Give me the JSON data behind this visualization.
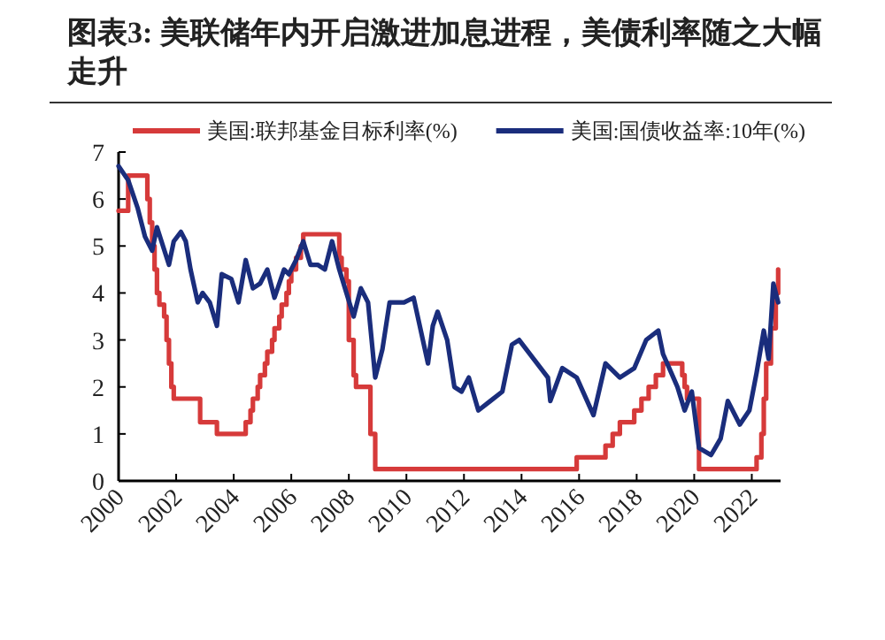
{
  "chart_data": {
    "type": "line",
    "title": "图表3: 美联储年内开启激进加息进程，美债利率随之大幅走升",
    "legend": "top",
    "xlim": [
      "2000-01",
      "2023-01"
    ],
    "xticks": [
      "2000",
      "2002",
      "2004",
      "2006",
      "2008",
      "2010",
      "2012",
      "2014",
      "2016",
      "2018",
      "2020",
      "2022"
    ],
    "ylim": [
      0,
      7
    ],
    "yticks": [
      0,
      1,
      2,
      3,
      4,
      5,
      6,
      7
    ],
    "series": [
      {
        "name": "美国:联邦基金目标利率(%)",
        "type": "step",
        "color": "#d63a3a",
        "x": [
          "2000-01",
          "2000-05",
          "2001-01",
          "2001-02",
          "2001-03",
          "2001-04",
          "2001-05",
          "2001-06",
          "2001-08",
          "2001-09",
          "2001-10",
          "2001-11",
          "2001-12",
          "2002-11",
          "2003-06",
          "2004-06",
          "2004-08",
          "2004-09",
          "2004-11",
          "2004-12",
          "2005-02",
          "2005-03",
          "2005-05",
          "2005-06",
          "2005-08",
          "2005-09",
          "2005-11",
          "2005-12",
          "2006-01",
          "2006-03",
          "2006-05",
          "2006-06",
          "2007-09",
          "2007-10",
          "2007-12",
          "2008-01",
          "2008-03",
          "2008-04",
          "2008-10",
          "2008-12",
          "2015-12",
          "2016-12",
          "2017-03",
          "2017-06",
          "2017-12",
          "2018-03",
          "2018-06",
          "2018-09",
          "2018-12",
          "2019-08",
          "2019-09",
          "2019-10",
          "2020-03",
          "2022-03",
          "2022-05",
          "2022-06",
          "2022-07",
          "2022-09",
          "2022-11",
          "2022-12"
        ],
        "values": [
          5.75,
          6.5,
          6.0,
          5.5,
          5.0,
          4.5,
          4.0,
          3.75,
          3.5,
          3.0,
          2.5,
          2.0,
          1.75,
          1.25,
          1.0,
          1.25,
          1.5,
          1.75,
          2.0,
          2.25,
          2.5,
          2.75,
          3.0,
          3.25,
          3.5,
          3.75,
          4.0,
          4.25,
          4.5,
          4.75,
          5.0,
          5.25,
          4.75,
          4.5,
          4.25,
          3.0,
          2.25,
          2.0,
          1.0,
          0.25,
          0.5,
          0.75,
          1.0,
          1.25,
          1.5,
          1.75,
          2.0,
          2.25,
          2.5,
          2.25,
          2.0,
          1.75,
          0.25,
          0.5,
          1.0,
          1.75,
          2.5,
          3.25,
          4.0,
          4.5
        ]
      },
      {
        "name": "美国:国债收益率:10年(%)",
        "type": "line",
        "color": "#1a2d7c",
        "x": [
          "2000-01",
          "2000-05",
          "2000-09",
          "2000-12",
          "2001-03",
          "2001-05",
          "2001-10",
          "2001-12",
          "2002-03",
          "2002-05",
          "2002-07",
          "2002-10",
          "2002-12",
          "2003-03",
          "2003-06",
          "2003-08",
          "2003-12",
          "2004-03",
          "2004-06",
          "2004-09",
          "2004-12",
          "2005-03",
          "2005-06",
          "2005-10",
          "2005-12",
          "2006-03",
          "2006-06",
          "2006-09",
          "2006-12",
          "2007-03",
          "2007-06",
          "2007-09",
          "2007-12",
          "2008-03",
          "2008-06",
          "2008-09",
          "2008-12",
          "2009-03",
          "2009-06",
          "2009-12",
          "2010-04",
          "2010-10",
          "2010-12",
          "2011-02",
          "2011-06",
          "2011-09",
          "2011-12",
          "2012-03",
          "2012-07",
          "2012-12",
          "2013-05",
          "2013-09",
          "2013-12",
          "2014-06",
          "2014-12",
          "2015-01",
          "2015-06",
          "2015-12",
          "2016-07",
          "2016-12",
          "2017-06",
          "2017-12",
          "2018-05",
          "2018-10",
          "2018-12",
          "2019-06",
          "2019-09",
          "2019-12",
          "2020-03",
          "2020-08",
          "2020-12",
          "2021-03",
          "2021-08",
          "2021-12",
          "2022-03",
          "2022-06",
          "2022-08",
          "2022-10",
          "2022-12"
        ],
        "values": [
          6.7,
          6.4,
          5.8,
          5.2,
          4.9,
          5.4,
          4.6,
          5.1,
          5.3,
          5.1,
          4.5,
          3.8,
          4.0,
          3.8,
          3.3,
          4.4,
          4.3,
          3.8,
          4.7,
          4.1,
          4.2,
          4.5,
          3.9,
          4.5,
          4.4,
          4.7,
          5.1,
          4.6,
          4.6,
          4.5,
          5.1,
          4.5,
          4.0,
          3.5,
          4.1,
          3.8,
          2.2,
          2.8,
          3.8,
          3.8,
          3.9,
          2.5,
          3.3,
          3.6,
          3.0,
          2.0,
          1.9,
          2.2,
          1.5,
          1.7,
          1.9,
          2.9,
          3.0,
          2.6,
          2.2,
          1.7,
          2.4,
          2.2,
          1.4,
          2.5,
          2.2,
          2.4,
          3.0,
          3.2,
          2.7,
          2.0,
          1.5,
          1.9,
          0.7,
          0.55,
          0.9,
          1.7,
          1.2,
          1.5,
          2.3,
          3.2,
          2.6,
          4.2,
          3.8
        ]
      }
    ]
  }
}
